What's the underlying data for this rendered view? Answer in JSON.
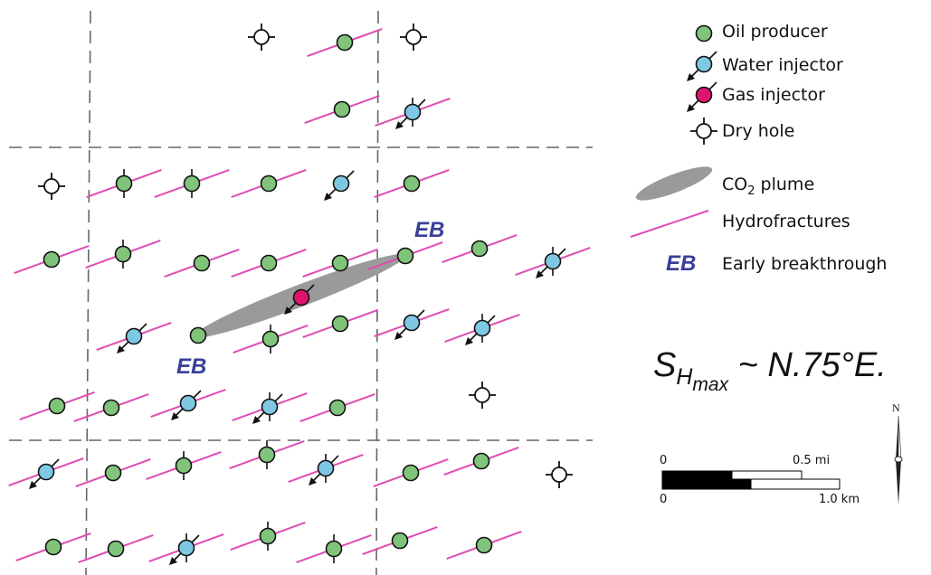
{
  "colors": {
    "oil_producer": "#7fc47a",
    "water_injector": "#7ec8e3",
    "gas_injector": "#e0136f",
    "hydrofracture": "#e04bb4",
    "co2_plume": "#9a9a9a",
    "eb_text": "#3a3f98",
    "grid_line": "#666666"
  },
  "legend": {
    "oil_producer": "Oil producer",
    "water_injector": "Water injector",
    "gas_injector": "Gas injector",
    "dry_hole": "Dry hole",
    "co2_prefix": "CO",
    "co2_sub": "2",
    "co2_suffix": " plume",
    "hydrofractures": "Hydrofractures",
    "eb_symbol": "EB",
    "early_breakthrough": "Early breakthrough"
  },
  "stress": {
    "s": "S",
    "h": "H",
    "max": "max",
    "rest": " ~ N.75°E."
  },
  "map_labels": {
    "eb_upper": "EB",
    "eb_lower": "EB"
  },
  "scale_bar": {
    "mi_zero": "0",
    "mi_label": "0.5 mi",
    "km_zero": "0",
    "km_label": "1.0 km"
  },
  "north_arrow": {
    "label": "N"
  },
  "wells": [
    {
      "type": "dry_hole"
    },
    {
      "type": "oil_producer",
      "frac": true
    },
    {
      "type": "dry_hole"
    },
    {
      "type": "oil_producer",
      "frac": true
    },
    {
      "type": "water_injector",
      "frac": true,
      "vtick": true
    },
    {
      "type": "dry_hole"
    },
    {
      "type": "oil_producer",
      "frac": true,
      "vtick": true
    },
    {
      "type": "oil_producer",
      "frac": true,
      "vtick": true
    },
    {
      "type": "oil_producer",
      "frac": true
    },
    {
      "type": "water_injector"
    },
    {
      "type": "oil_producer",
      "frac": true
    },
    {
      "type": "oil_producer",
      "frac": true
    },
    {
      "type": "oil_producer",
      "frac": true,
      "vtick": true
    },
    {
      "type": "oil_producer",
      "frac": true
    },
    {
      "type": "oil_producer",
      "frac": true
    },
    {
      "type": "oil_producer",
      "frac": true
    },
    {
      "type": "oil_producer",
      "frac": true
    },
    {
      "type": "oil_producer",
      "frac": true
    },
    {
      "type": "water_injector",
      "frac": true,
      "vtick": true
    },
    {
      "type": "gas_injector"
    },
    {
      "type": "water_injector",
      "frac": true
    },
    {
      "type": "oil_producer"
    },
    {
      "type": "oil_producer",
      "frac": true,
      "vtick": true
    },
    {
      "type": "oil_producer",
      "frac": true
    },
    {
      "type": "water_injector",
      "frac": true
    },
    {
      "type": "water_injector",
      "frac": true,
      "vtick": true
    },
    {
      "type": "oil_producer",
      "frac": true
    },
    {
      "type": "oil_producer",
      "frac": true
    },
    {
      "type": "water_injector",
      "frac": true
    },
    {
      "type": "water_injector",
      "frac": true,
      "vtick": true
    },
    {
      "type": "oil_producer",
      "frac": true
    },
    {
      "type": "dry_hole"
    },
    {
      "type": "water_injector",
      "frac": true
    },
    {
      "type": "oil_producer",
      "frac": true
    },
    {
      "type": "oil_producer",
      "frac": true,
      "vtick": true
    },
    {
      "type": "oil_producer",
      "frac": true,
      "vtick": true
    },
    {
      "type": "water_injector",
      "frac": true,
      "vtick": true
    },
    {
      "type": "oil_producer",
      "frac": true
    },
    {
      "type": "oil_producer",
      "frac": true
    },
    {
      "type": "dry_hole"
    },
    {
      "type": "oil_producer",
      "frac": true
    },
    {
      "type": "oil_producer",
      "frac": true
    },
    {
      "type": "water_injector",
      "frac": true,
      "vtick": true
    },
    {
      "type": "oil_producer",
      "frac": true,
      "vtick": true
    },
    {
      "type": "oil_producer",
      "frac": true,
      "vtick": true
    },
    {
      "type": "oil_producer",
      "frac": true
    },
    {
      "type": "oil_producer",
      "frac": true
    }
  ]
}
